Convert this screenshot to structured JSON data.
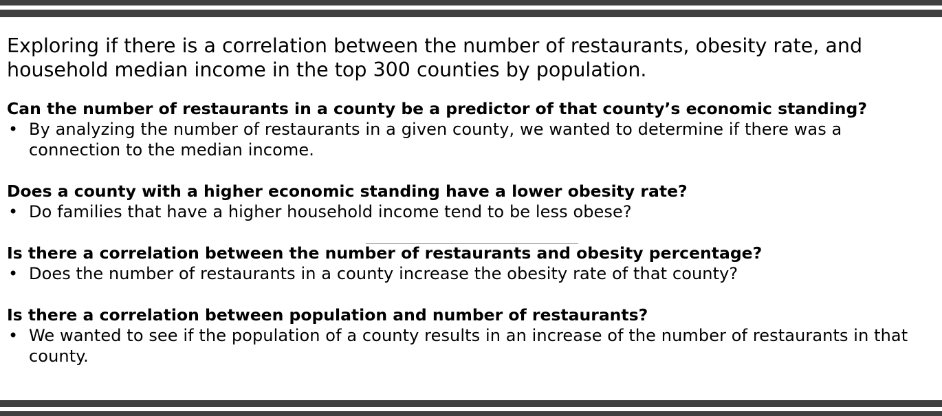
{
  "intro": "Exploring if there is a correlation between the number of restaurants, obesity rate, and household median income in the top 300 counties by population.",
  "sections": [
    {
      "question": "Can the number of restaurants in a county be a predictor of that county’s economic standing?",
      "bullet": "By analyzing the number of restaurants in a given county, we wanted to determine if there was a connection to the median income."
    },
    {
      "question": "Does a county with a higher economic standing have a lower obesity rate?",
      "bullet": "Do families that have a higher household income tend to be less obese?"
    },
    {
      "question": "Is there a correlation between the number of restaurants and obesity percentage?",
      "bullet": "Does the number of restaurants in a county increase the obesity rate of that county?"
    },
    {
      "question": "Is there a correlation between population and number of restaurants?",
      "bullet": "We wanted to see if the population of a county results in an increase of the number of restaurants in that county."
    }
  ],
  "bullet_symbol": "•",
  "colors": {
    "bars": "#404040",
    "text": "#000000",
    "divider": "#8c8c8c"
  }
}
